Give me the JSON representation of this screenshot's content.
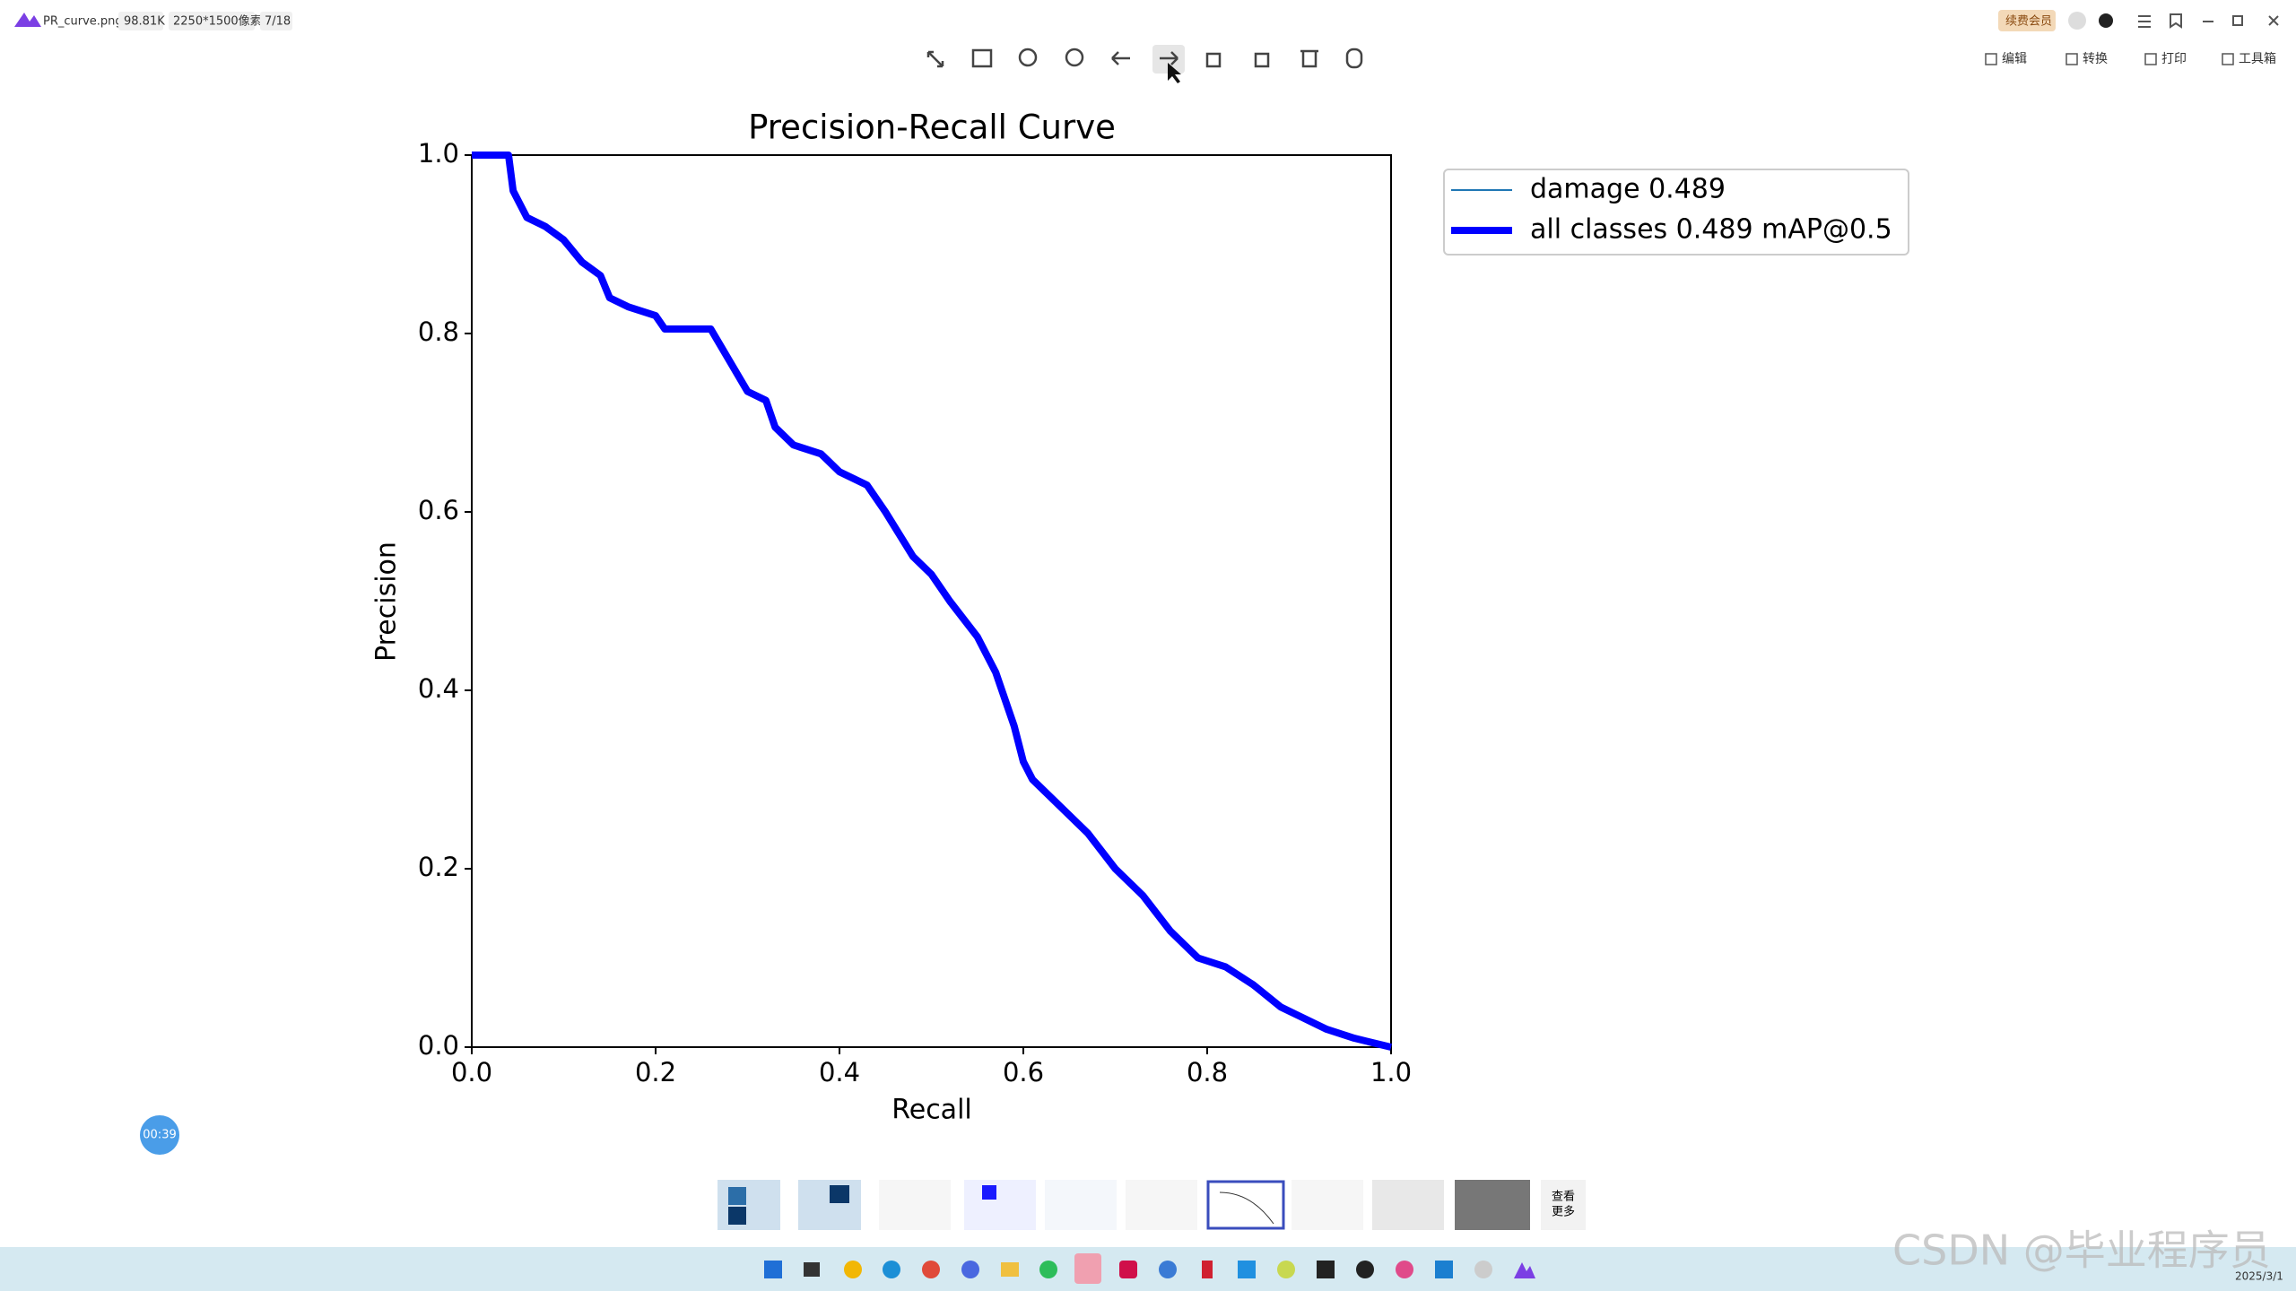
{
  "app": {
    "filename": "PR_curve.png",
    "filesize": "98.81K",
    "dimensions": "2250*1500像素",
    "counter": "7/18",
    "vip": "续费会员",
    "menu": [
      "编辑",
      "转换",
      "打印",
      "工具箱"
    ]
  },
  "timer": "00:39",
  "more": [
    "查看",
    "更多"
  ],
  "watermark": "CSDN @毕业程序员",
  "date": "2025/3/1",
  "chart_data": {
    "type": "line",
    "title": "Precision-Recall Curve",
    "x_label": "Recall",
    "y_label": "Precision",
    "xlim": [
      0,
      1
    ],
    "ylim": [
      0,
      1
    ],
    "xticks": [
      {
        "value": 0,
        "label": "0.0"
      },
      {
        "value": 0.2,
        "label": "0.2"
      },
      {
        "value": 0.4,
        "label": "0.4"
      },
      {
        "value": 0.6,
        "label": "0.6"
      },
      {
        "value": 0.8,
        "label": "0.8"
      },
      {
        "value": 1,
        "label": "1.0"
      }
    ],
    "yticks": [
      {
        "value": 0,
        "label": "0.0"
      },
      {
        "value": 0.2,
        "label": "0.2"
      },
      {
        "value": 0.4,
        "label": "0.4"
      },
      {
        "value": 0.6,
        "label": "0.6"
      },
      {
        "value": 0.8,
        "label": "0.8"
      },
      {
        "value": 1,
        "label": "1.0"
      }
    ],
    "x": [
      0,
      0.04,
      0.045,
      0.06,
      0.08,
      0.1,
      0.12,
      0.14,
      0.15,
      0.17,
      0.2,
      0.21,
      0.26,
      0.28,
      0.3,
      0.32,
      0.33,
      0.35,
      0.38,
      0.4,
      0.43,
      0.45,
      0.48,
      0.5,
      0.52,
      0.55,
      0.57,
      0.59,
      0.6,
      0.61,
      0.64,
      0.67,
      0.7,
      0.73,
      0.76,
      0.79,
      0.82,
      0.85,
      0.88,
      0.9,
      0.93,
      0.96,
      1
    ],
    "series": [
      {
        "name": "damage 0.489",
        "color": "#1f77b4",
        "values": [
          1,
          1,
          0.96,
          0.93,
          0.92,
          0.905,
          0.88,
          0.865,
          0.84,
          0.83,
          0.82,
          0.805,
          0.805,
          0.77,
          0.735,
          0.725,
          0.695,
          0.675,
          0.665,
          0.645,
          0.63,
          0.6,
          0.55,
          0.53,
          0.5,
          0.46,
          0.42,
          0.36,
          0.32,
          0.3,
          0.27,
          0.24,
          0.2,
          0.17,
          0.13,
          0.1,
          0.09,
          0.07,
          0.045,
          0.035,
          0.02,
          0.01,
          0
        ]
      },
      {
        "name": "all classes 0.489 mAP@0.5",
        "color": "#0000ff",
        "values": [
          1,
          1,
          0.96,
          0.93,
          0.92,
          0.905,
          0.88,
          0.865,
          0.84,
          0.83,
          0.82,
          0.805,
          0.805,
          0.77,
          0.735,
          0.725,
          0.695,
          0.675,
          0.665,
          0.645,
          0.63,
          0.6,
          0.55,
          0.53,
          0.5,
          0.46,
          0.42,
          0.36,
          0.32,
          0.3,
          0.27,
          0.24,
          0.2,
          0.17,
          0.13,
          0.1,
          0.09,
          0.07,
          0.045,
          0.035,
          0.02,
          0.01,
          0
        ]
      }
    ]
  }
}
